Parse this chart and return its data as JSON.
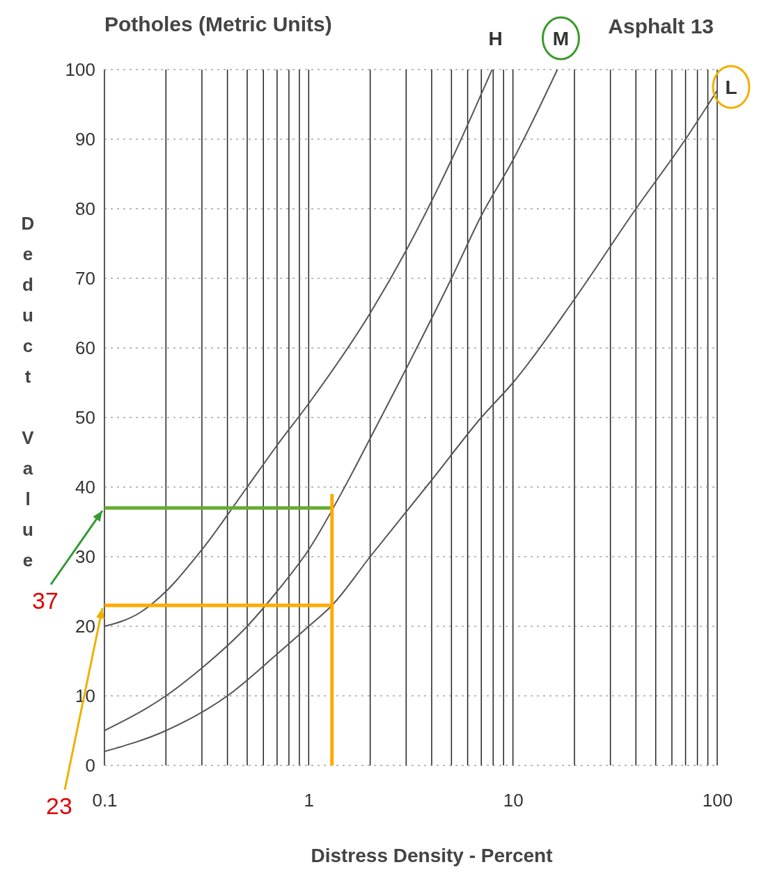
{
  "chart_data": {
    "type": "line",
    "title": "Potholes (Metric Units)",
    "xlabel": "Distress Density - Percent",
    "ylabel": "Deduct Value",
    "log": "x",
    "xlim": [
      0.1,
      100
    ],
    "ylim": [
      0,
      100
    ],
    "xticks": [
      0.1,
      {
        "value": 0.2,
        "label": null
      },
      {
        "value": 0.3,
        "label": null
      },
      {
        "value": 0.4,
        "label": null
      },
      {
        "value": 0.5,
        "label": null
      },
      {
        "value": 0.6,
        "label": null
      },
      {
        "value": 0.7,
        "label": null
      },
      {
        "value": 0.8,
        "label": null
      },
      {
        "value": 0.9,
        "label": null
      },
      1,
      {
        "value": 2,
        "label": null
      },
      {
        "value": 3,
        "label": null
      },
      {
        "value": 4,
        "label": null
      },
      {
        "value": 5,
        "label": null
      },
      {
        "value": 6,
        "label": null
      },
      {
        "value": 7,
        "label": null
      },
      {
        "value": 8,
        "label": null
      },
      {
        "value": 9,
        "label": null
      },
      10,
      {
        "value": 20,
        "label": null
      },
      {
        "value": 30,
        "label": null
      },
      {
        "value": 40,
        "label": null
      },
      {
        "value": 50,
        "label": null
      },
      {
        "value": 60,
        "label": null
      },
      {
        "value": 70,
        "label": null
      },
      {
        "value": 80,
        "label": null
      },
      {
        "value": 90,
        "label": null
      },
      100
    ],
    "yticks": [
      0,
      10,
      20,
      30,
      40,
      50,
      60,
      70,
      80,
      90,
      100
    ],
    "grid": true,
    "series": [
      {
        "name": "H",
        "color": "#555555",
        "x": [
          0.1,
          0.15,
          0.2,
          0.3,
          0.5,
          0.7,
          1,
          2,
          3,
          5,
          7.9
        ],
        "values": [
          20,
          22,
          25,
          31,
          40,
          46,
          52,
          65,
          74,
          87,
          100
        ]
      },
      {
        "name": "M",
        "color": "#555555",
        "x": [
          0.1,
          0.2,
          0.3,
          0.5,
          0.7,
          1,
          1.5,
          2,
          3,
          5,
          7,
          10,
          16.5
        ],
        "values": [
          5,
          10,
          14,
          20,
          25,
          31,
          40,
          47,
          57,
          70,
          79,
          87,
          100
        ]
      },
      {
        "name": "L",
        "color": "#555555",
        "x": [
          0.1,
          0.2,
          0.4,
          0.7,
          1,
          1.3,
          2,
          4,
          7,
          10,
          20,
          40,
          70,
          100
        ],
        "values": [
          2,
          5,
          10,
          16,
          20,
          23,
          30,
          41,
          50,
          55,
          67,
          80,
          90,
          97
        ]
      },
      {
        "color": "#66aa33",
        "x": [
          0.1,
          1.3
        ],
        "values": [
          37,
          37
        ]
      },
      {
        "color": "#ffaa00",
        "x": [
          0.1,
          1.3
        ],
        "values": [
          23,
          23
        ]
      },
      {
        "color": "#ffaa00",
        "x": [
          1.3,
          1.3
        ],
        "values": [
          0,
          39
        ]
      }
    ],
    "annotations": [
      {
        "text": "37",
        "x": 0.1,
        "y": 37
      },
      {
        "text": "23",
        "x": 0.1,
        "y": 23
      },
      "Asphalt 13"
    ]
  }
}
